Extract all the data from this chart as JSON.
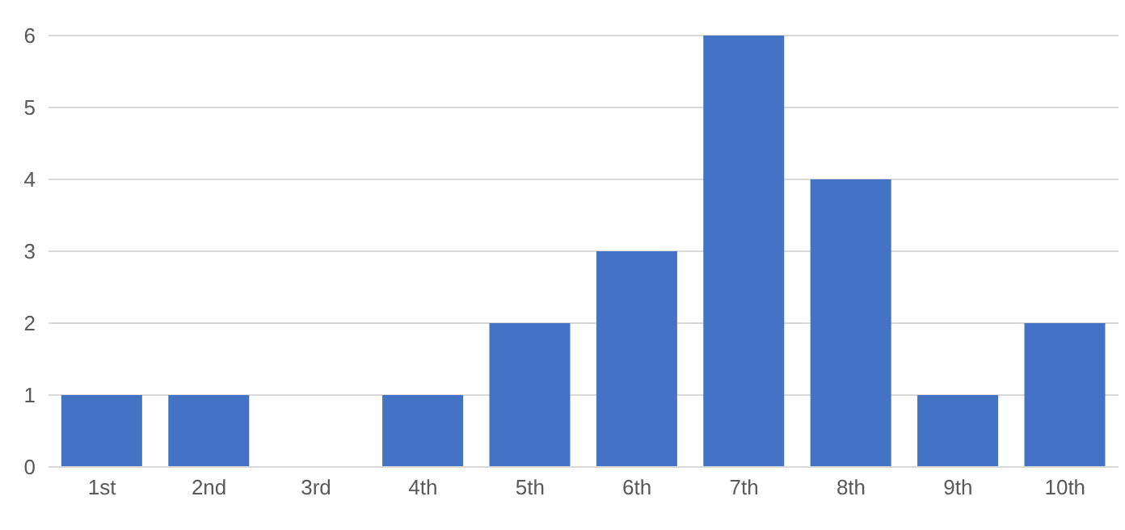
{
  "chart_data": {
    "type": "bar",
    "categories": [
      "1st",
      "2nd",
      "3rd",
      "4th",
      "5th",
      "6th",
      "7th",
      "8th",
      "9th",
      "10th"
    ],
    "values": [
      1,
      1,
      0,
      1,
      2,
      3,
      6,
      4,
      1,
      2
    ],
    "color": "#4472c4",
    "ylim": [
      0,
      6
    ],
    "yticks": [
      0,
      1,
      2,
      3,
      4,
      5,
      6
    ],
    "grid": "y"
  }
}
